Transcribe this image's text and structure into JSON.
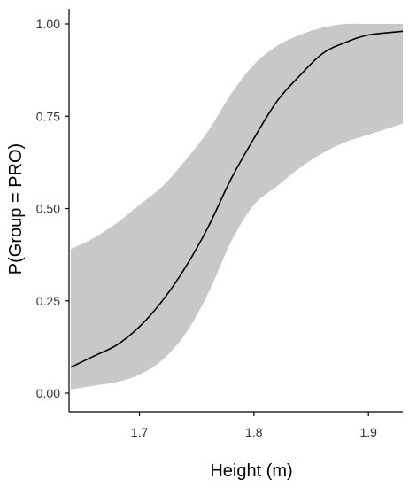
{
  "chart_data": {
    "type": "line",
    "xlabel": "Height (m)",
    "ylabel": "P(Group = PRO)",
    "xlim": [
      1.6385,
      1.93
    ],
    "ylim": [
      0.0,
      1.0
    ],
    "x_ticks": [
      1.7,
      1.8,
      1.9
    ],
    "x_tick_labels": [
      "1.7",
      "1.8",
      "1.9"
    ],
    "y_ticks": [
      0.0,
      0.25,
      0.5,
      0.75,
      1.0
    ],
    "y_tick_labels": [
      "0.00",
      "0.25",
      "0.50",
      "0.75",
      "1.00"
    ],
    "grid": false,
    "series": [
      {
        "role": "fitted",
        "color": "#000000",
        "x": [
          1.64,
          1.66,
          1.68,
          1.7,
          1.72,
          1.74,
          1.76,
          1.78,
          1.8,
          1.82,
          1.84,
          1.86,
          1.88,
          1.9,
          1.93
        ],
        "y": [
          0.07,
          0.1,
          0.13,
          0.18,
          0.25,
          0.34,
          0.45,
          0.58,
          0.69,
          0.79,
          0.86,
          0.92,
          0.95,
          0.97,
          0.98
        ]
      }
    ],
    "confidence_band": {
      "color": "#c8c8c8",
      "x": [
        1.64,
        1.66,
        1.68,
        1.7,
        1.72,
        1.74,
        1.76,
        1.78,
        1.8,
        1.82,
        1.84,
        1.86,
        1.88,
        1.9,
        1.93
      ],
      "lower": [
        0.01,
        0.02,
        0.03,
        0.05,
        0.09,
        0.16,
        0.27,
        0.41,
        0.51,
        0.56,
        0.61,
        0.65,
        0.68,
        0.7,
        0.73
      ],
      "upper": [
        0.39,
        0.42,
        0.46,
        0.51,
        0.56,
        0.63,
        0.71,
        0.81,
        0.89,
        0.94,
        0.97,
        0.99,
        1.0,
        1.0,
        1.0
      ]
    }
  }
}
